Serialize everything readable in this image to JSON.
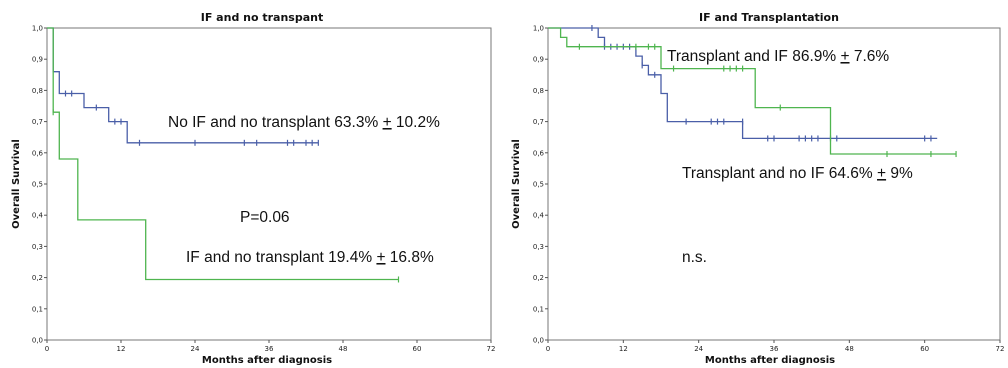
{
  "chart_data": [
    {
      "type": "line",
      "title": "IF and  no transpant",
      "xlabel": "Months after diagnosis",
      "ylabel": "Overall Survival",
      "xlim": [
        0,
        72
      ],
      "ylim": [
        0,
        1
      ],
      "xticks": [
        "0",
        "12",
        "24",
        "36",
        "48",
        "60",
        "72"
      ],
      "yticks": [
        "0,0",
        "0,1",
        "0,2",
        "0,3",
        "0,4",
        "0,5",
        "0,6",
        "0,7",
        "0,8",
        "0,9",
        "1,0"
      ],
      "grid": false,
      "colors": [
        "#4a5fa8",
        "#4fb54f"
      ],
      "series": [
        {
          "steps": [
            [
              0,
              1.0
            ],
            [
              1,
              0.86
            ],
            [
              2,
              0.79
            ],
            [
              5,
              0.79
            ],
            [
              6,
              0.745
            ],
            [
              9,
              0.745
            ],
            [
              10,
              0.7
            ],
            [
              13,
              0.7
            ],
            [
              13,
              0.632
            ],
            [
              44,
              0.632
            ]
          ],
          "censored": [
            [
              3,
              0.79
            ],
            [
              4,
              0.79
            ],
            [
              8,
              0.745
            ],
            [
              11,
              0.7
            ],
            [
              12,
              0.7
            ],
            [
              15,
              0.632
            ],
            [
              24,
              0.632
            ],
            [
              32,
              0.632
            ],
            [
              34,
              0.632
            ],
            [
              39,
              0.632
            ],
            [
              40,
              0.632
            ],
            [
              42,
              0.632
            ],
            [
              43,
              0.632
            ],
            [
              44,
              0.632
            ]
          ]
        },
        {
          "steps": [
            [
              0,
              1.0
            ],
            [
              1,
              0.97
            ],
            [
              1,
              0.73
            ],
            [
              2,
              0.73
            ],
            [
              2,
              0.58
            ],
            [
              5,
              0.58
            ],
            [
              5,
              0.385
            ],
            [
              16,
              0.385
            ],
            [
              16,
              0.194
            ],
            [
              57,
              0.194
            ]
          ],
          "censored": [
            [
              1,
              0.73
            ],
            [
              57,
              0.194
            ]
          ]
        }
      ],
      "annotations": [
        "No IF and no transplant 63.3% ",
        "+",
        " 10.2%",
        "P=0.06",
        "IF and no transplant 19.4% ",
        "+",
        " 16.8%"
      ]
    },
    {
      "type": "line",
      "title": "IF and Transplantation",
      "xlabel": "Months after diagnosis",
      "ylabel": "Overall Survival",
      "xlim": [
        0,
        72
      ],
      "ylim": [
        0,
        1
      ],
      "xticks": [
        "0",
        "12",
        "24",
        "36",
        "48",
        "60",
        "72"
      ],
      "yticks": [
        "0,0",
        "0,1",
        "0,2",
        "0,3",
        "0,4",
        "0,5",
        "0,6",
        "0,7",
        "0,8",
        "0,9",
        "1,0"
      ],
      "grid": false,
      "colors": [
        "#4a5fa8",
        "#4fb54f"
      ],
      "series": [
        {
          "steps": [
            [
              0,
              1.0
            ],
            [
              7,
              1.0
            ],
            [
              8,
              0.97
            ],
            [
              9,
              0.94
            ],
            [
              13,
              0.94
            ],
            [
              14,
              0.91
            ],
            [
              15,
              0.88
            ],
            [
              16,
              0.85
            ],
            [
              18,
              0.82
            ],
            [
              18,
              0.79
            ],
            [
              19,
              0.7
            ],
            [
              31,
              0.7
            ],
            [
              31,
              0.646
            ],
            [
              62,
              0.646
            ]
          ],
          "censored": [
            [
              7,
              1.0
            ],
            [
              9,
              0.94
            ],
            [
              10,
              0.94
            ],
            [
              11,
              0.94
            ],
            [
              12,
              0.94
            ],
            [
              13,
              0.94
            ],
            [
              15,
              0.88
            ],
            [
              17,
              0.85
            ],
            [
              22,
              0.7
            ],
            [
              26,
              0.7
            ],
            [
              27,
              0.7
            ],
            [
              28,
              0.7
            ],
            [
              31,
              0.7
            ],
            [
              35,
              0.646
            ],
            [
              36,
              0.646
            ],
            [
              40,
              0.646
            ],
            [
              41,
              0.646
            ],
            [
              42,
              0.646
            ],
            [
              43,
              0.646
            ],
            [
              45,
              0.646
            ],
            [
              46,
              0.646
            ],
            [
              60,
              0.646
            ],
            [
              61,
              0.646
            ]
          ]
        },
        {
          "steps": [
            [
              0,
              1.0
            ],
            [
              2,
              0.97
            ],
            [
              3,
              0.94
            ],
            [
              18,
              0.94
            ],
            [
              18,
              0.87
            ],
            [
              33,
              0.87
            ],
            [
              33,
              0.745
            ],
            [
              45,
              0.745
            ],
            [
              45,
              0.596
            ],
            [
              65,
              0.596
            ]
          ],
          "censored": [
            [
              5,
              0.94
            ],
            [
              14,
              0.94
            ],
            [
              16,
              0.94
            ],
            [
              17,
              0.94
            ],
            [
              20,
              0.87
            ],
            [
              28,
              0.87
            ],
            [
              29,
              0.87
            ],
            [
              30,
              0.87
            ],
            [
              31,
              0.87
            ],
            [
              37,
              0.745
            ],
            [
              54,
              0.596
            ],
            [
              61,
              0.596
            ],
            [
              65,
              0.596
            ]
          ]
        }
      ],
      "annotations": [
        "Transplant and IF 86.9% ",
        "+",
        " 7.6%",
        "Transplant and no IF 64.6% ",
        "+",
        " 9%",
        "n.s."
      ]
    }
  ]
}
